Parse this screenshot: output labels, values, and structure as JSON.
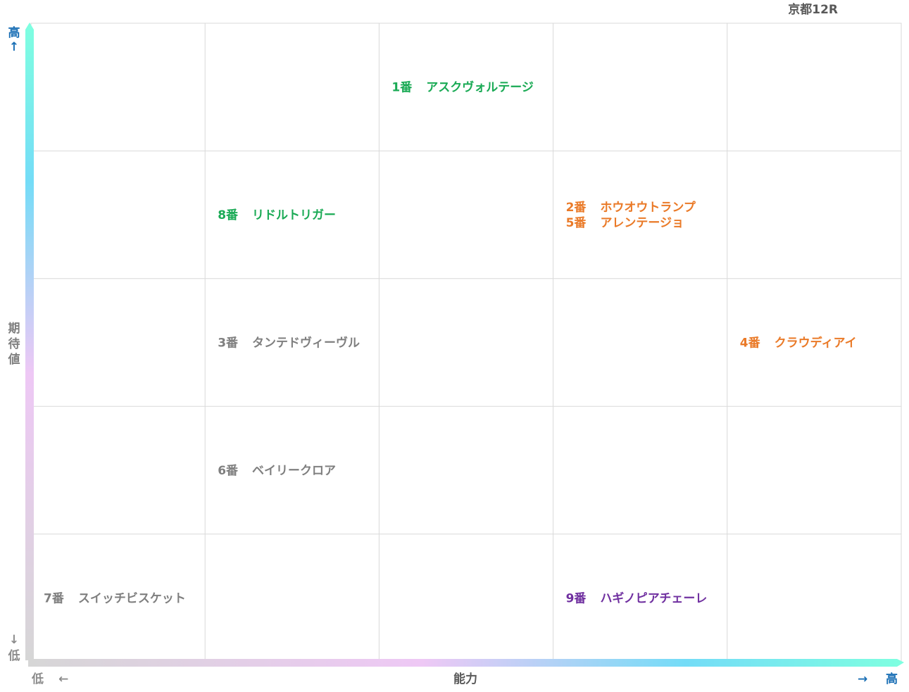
{
  "chart_data": {
    "type": "scatter",
    "title": "京都12R",
    "xlabel": "能力",
    "ylabel": "期待値",
    "x_axis_low": "低",
    "x_axis_high": "高",
    "y_axis_low": "低",
    "y_axis_high": "高",
    "x_arrow_left": "←",
    "x_arrow_right": "→",
    "y_arrow_up": "↑",
    "y_arrow_down": "↓",
    "xlim": [
      1,
      5
    ],
    "ylim": [
      1,
      5
    ],
    "grid": true,
    "colors": {
      "green": "#1aaa55",
      "orange": "#ea7a28",
      "gray": "#7f7f7f",
      "purple": "#7030a0",
      "axis_label": "#1a6fb5",
      "grid": "#d9d9d9"
    },
    "points": [
      {
        "number": "1番",
        "name": "アスクヴォルテージ",
        "x": 3,
        "y": 5,
        "color": "green"
      },
      {
        "number": "8番",
        "name": "リドルトリガー",
        "x": 2,
        "y": 4,
        "color": "green"
      },
      {
        "number": "2番",
        "name": "ホウオウトランプ",
        "x": 4,
        "y": 4,
        "color": "orange"
      },
      {
        "number": "5番",
        "name": "アレンテージョ",
        "x": 4,
        "y": 4,
        "color": "orange"
      },
      {
        "number": "3番",
        "name": "タンテドヴィーヴル",
        "x": 2,
        "y": 3,
        "color": "gray"
      },
      {
        "number": "4番",
        "name": "クラウディアイ",
        "x": 5,
        "y": 3,
        "color": "orange"
      },
      {
        "number": "6番",
        "name": "ベイリークロア",
        "x": 2,
        "y": 2,
        "color": "gray"
      },
      {
        "number": "7番",
        "name": "スイッチビスケット",
        "x": 1,
        "y": 1,
        "color": "gray"
      },
      {
        "number": "9番",
        "name": "ハギノピアチェーレ",
        "x": 4,
        "y": 1,
        "color": "purple"
      }
    ]
  }
}
